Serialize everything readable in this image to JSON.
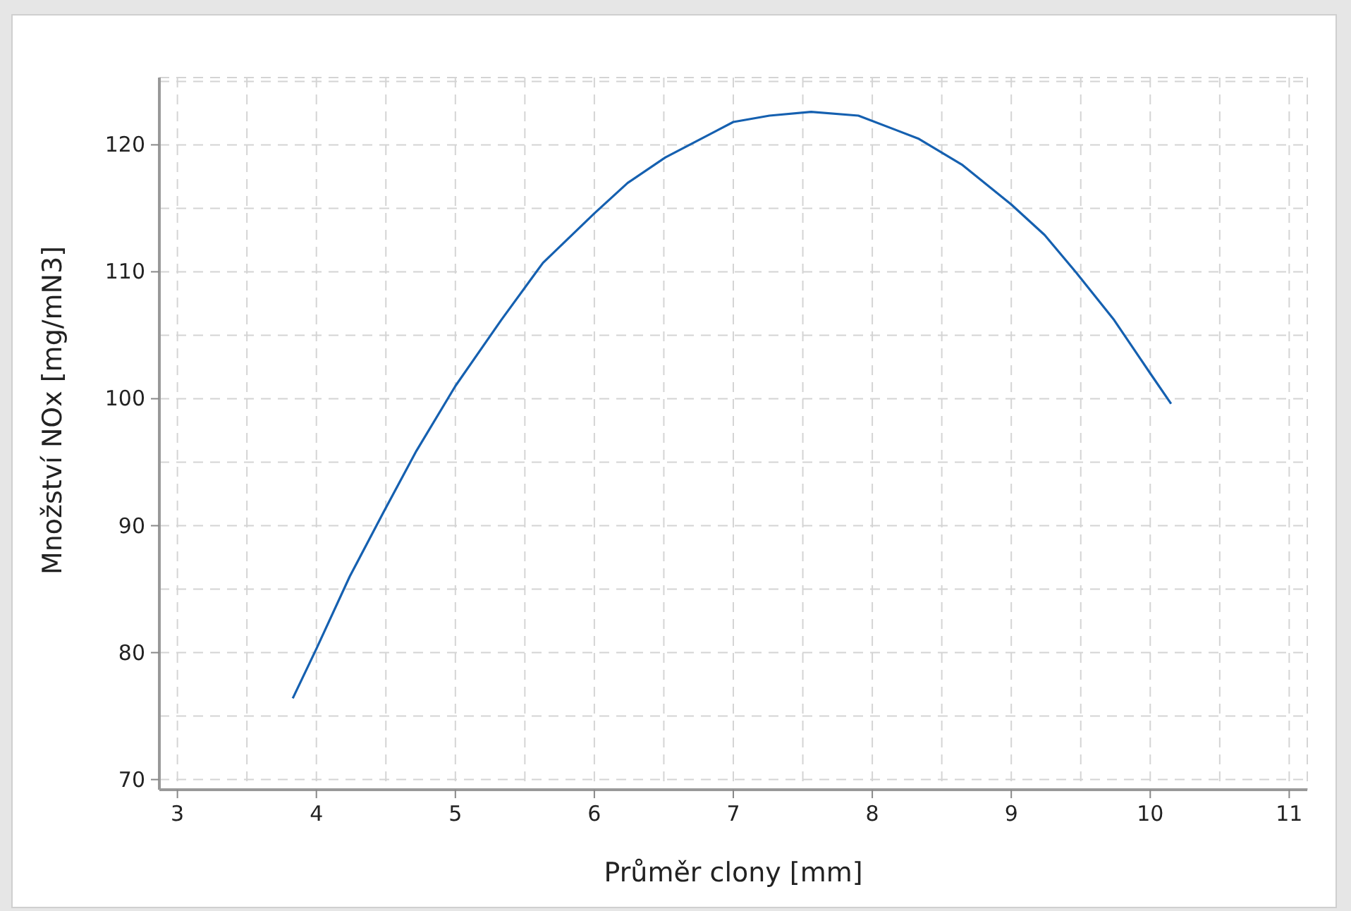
{
  "chart_data": {
    "type": "line",
    "xlabel": "Průměr clony [mm]",
    "ylabel": "Množství NOx [mg/mN3]",
    "x": [
      3.83,
      4.0,
      4.24,
      4.48,
      4.72,
      5.0,
      5.33,
      5.63,
      6.0,
      6.24,
      6.51,
      7.0,
      7.26,
      7.56,
      7.9,
      8.33,
      8.65,
      9.0,
      9.24,
      9.47,
      9.74,
      10.0,
      10.15
    ],
    "series": [
      {
        "color": "#1560b0",
        "values": [
          76.4,
          80.3,
          86.0,
          91.0,
          95.9,
          101.0,
          106.2,
          110.7,
          114.6,
          117.0,
          119.0,
          121.8,
          122.3,
          122.6,
          122.3,
          120.5,
          118.4,
          115.3,
          112.9,
          109.9,
          106.2,
          102.0,
          99.6
        ]
      }
    ],
    "xlim": [
      2.87,
      11.13
    ],
    "ylim": [
      69.2,
      125.3
    ],
    "xticks": [
      3,
      {
        "value": 3.5,
        "label": null
      },
      4,
      {
        "value": 4.5,
        "label": null
      },
      5,
      {
        "value": 5.5,
        "label": null
      },
      6,
      {
        "value": 6.5,
        "label": null
      },
      7,
      {
        "value": 7.5,
        "label": null
      },
      8,
      {
        "value": 8.5,
        "label": null
      },
      9,
      {
        "value": 9.5,
        "label": null
      },
      10,
      {
        "value": 10.5,
        "label": null
      },
      11
    ],
    "yticks": [
      70,
      {
        "value": 75,
        "label": null
      },
      80,
      {
        "value": 85,
        "label": null
      },
      90,
      {
        "value": 95,
        "label": null
      },
      100,
      {
        "value": 105,
        "label": null
      },
      110,
      {
        "value": 115,
        "label": null
      },
      120,
      {
        "value": 125,
        "label": null
      }
    ],
    "grid": true
  }
}
